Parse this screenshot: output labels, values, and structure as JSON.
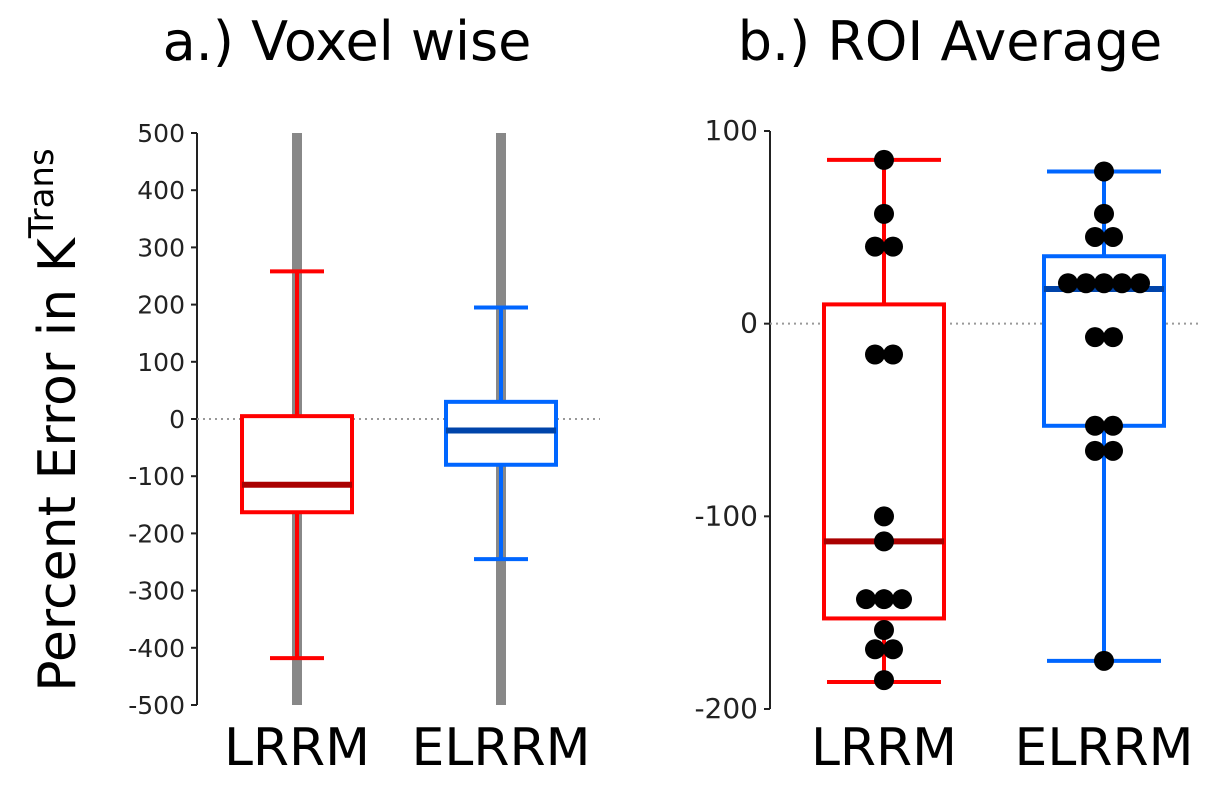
{
  "ylabel": {
    "text": "Percent Error in K",
    "superscript": "Trans"
  },
  "chart_data": [
    {
      "type": "box",
      "title": "a.) Voxel wise",
      "categories": [
        "LRRM",
        "ELRRM"
      ],
      "ylim": [
        -500,
        500
      ],
      "yticks": [
        500,
        400,
        300,
        200,
        100,
        0,
        -100,
        -200,
        -300,
        -400,
        -500
      ],
      "reference_line": 0,
      "boxes": [
        {
          "name": "LRRM",
          "whisker_low": -418,
          "q1": -163,
          "median": -115,
          "q3": 5,
          "whisker_high": 258,
          "outlier_range": [
            -500,
            500
          ],
          "color": "#ff0000",
          "median_color": "#aa0000"
        },
        {
          "name": "ELRRM",
          "whisker_low": -245,
          "q1": -80,
          "median": -20,
          "q3": 30,
          "whisker_high": 195,
          "outlier_range": [
            -500,
            500
          ],
          "color": "#0066ff",
          "median_color": "#0044aa"
        }
      ],
      "outlier_color": "#888888"
    },
    {
      "type": "box",
      "title": "b.) ROI Average",
      "categories": [
        "LRRM",
        "ELRRM"
      ],
      "ylim": [
        -200,
        100
      ],
      "yticks": [
        100,
        0,
        -100,
        -200
      ],
      "reference_line": 0,
      "boxes": [
        {
          "name": "LRRM",
          "whisker_low": -186,
          "q1": -153,
          "median": -113,
          "q3": 10,
          "whisker_high": 85,
          "color": "#ff0000",
          "median_color": "#aa0000",
          "points": [
            85,
            57,
            40,
            40,
            -16,
            -16,
            -100,
            -113,
            -143,
            -143,
            -143,
            -159,
            -169,
            -169,
            -185
          ]
        },
        {
          "name": "ELRRM",
          "whisker_low": -175,
          "q1": -53,
          "median": 18,
          "q3": 35,
          "whisker_high": 79,
          "color": "#0066ff",
          "median_color": "#0044aa",
          "points": [
            79,
            57,
            45,
            45,
            21,
            21,
            21,
            21,
            21,
            -7,
            -7,
            -53,
            -53,
            -66,
            -66,
            -175
          ]
        }
      ],
      "point_color": "#000000"
    }
  ]
}
